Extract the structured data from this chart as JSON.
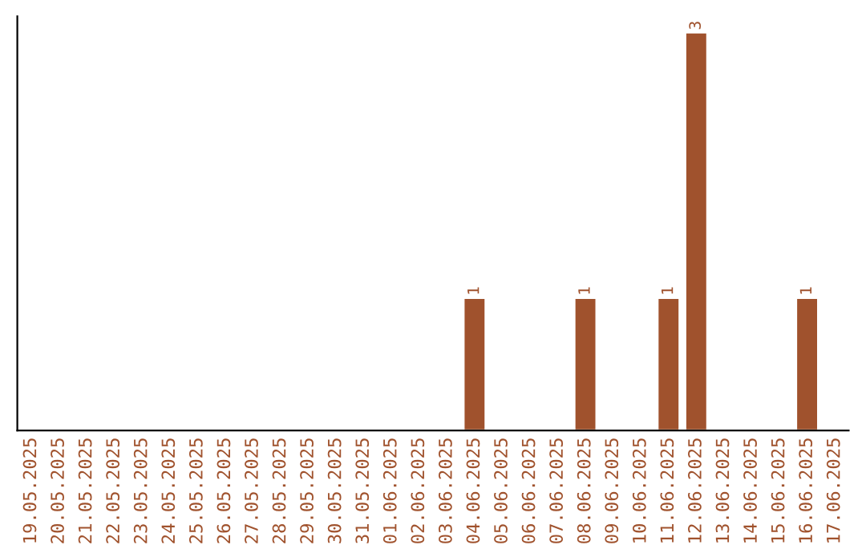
{
  "chart_data": {
    "type": "bar",
    "categories": [
      "19.05.2025",
      "20.05.2025",
      "21.05.2025",
      "22.05.2025",
      "23.05.2025",
      "24.05.2025",
      "25.05.2025",
      "26.05.2025",
      "27.05.2025",
      "28.05.2025",
      "29.05.2025",
      "30.05.2025",
      "31.05.2025",
      "01.06.2025",
      "02.06.2025",
      "03.06.2025",
      "04.06.2025",
      "05.06.2025",
      "06.06.2025",
      "07.06.2025",
      "08.06.2025",
      "09.06.2025",
      "10.06.2025",
      "11.06.2025",
      "12.06.2025",
      "13.06.2025",
      "14.06.2025",
      "15.06.2025",
      "16.06.2025",
      "17.06.2025"
    ],
    "values": [
      null,
      null,
      null,
      null,
      null,
      null,
      null,
      null,
      null,
      null,
      null,
      null,
      null,
      null,
      null,
      null,
      1,
      null,
      null,
      null,
      1,
      null,
      null,
      1,
      3,
      null,
      null,
      null,
      1,
      null
    ],
    "value_labels": [
      null,
      null,
      null,
      null,
      null,
      null,
      null,
      null,
      null,
      null,
      null,
      null,
      null,
      null,
      null,
      null,
      "1",
      null,
      null,
      null,
      "1",
      null,
      null,
      "1",
      "3",
      null,
      null,
      null,
      "1",
      null
    ],
    "color": "#a0522d",
    "grid": false,
    "legend": false,
    "tick_labels": "x"
  }
}
